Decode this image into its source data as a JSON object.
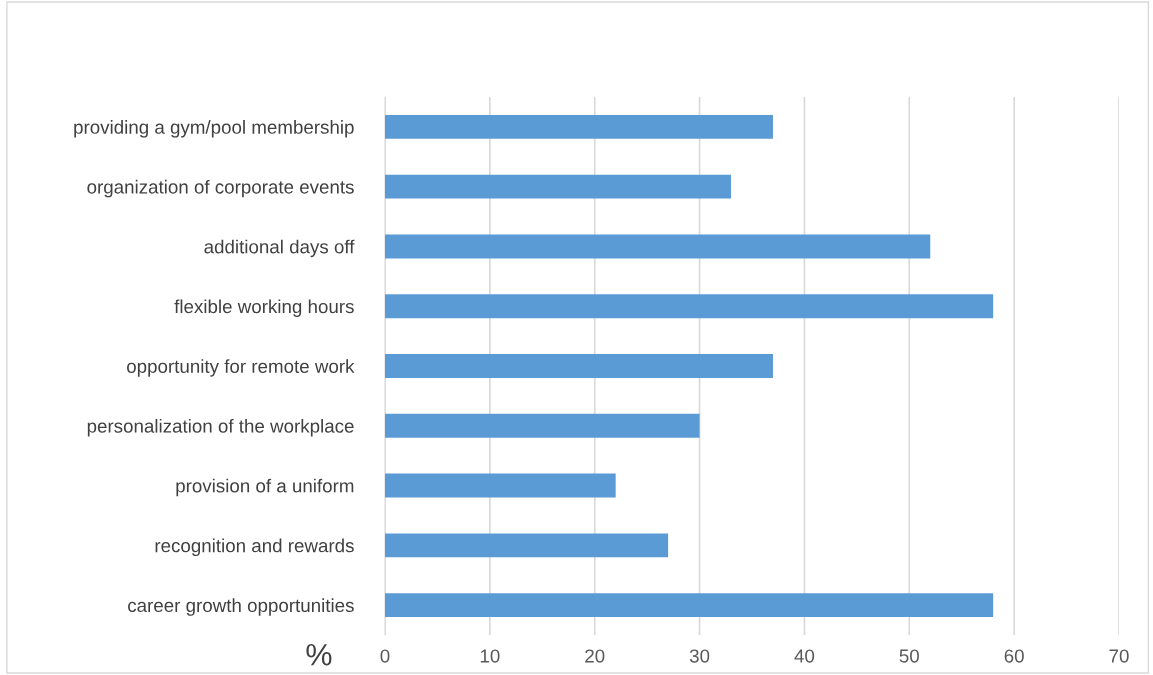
{
  "chart_data": {
    "type": "bar",
    "orientation": "horizontal",
    "xlabel": "%",
    "categories": [
      "providing a gym/pool membership",
      "organization of corporate events",
      "additional days off",
      "flexible working hours",
      "opportunity for remote work",
      "personalization of the workplace",
      "provision of a uniform",
      "recognition and rewards",
      "career growth opportunities"
    ],
    "values": [
      37,
      33,
      52,
      58,
      37,
      30,
      22,
      27,
      58
    ],
    "color": "#5b9bd5",
    "xlim": [
      0,
      70
    ],
    "xticks": [
      0,
      10,
      20,
      30,
      40,
      50,
      60,
      70
    ],
    "grid": "x",
    "legend": false
  }
}
